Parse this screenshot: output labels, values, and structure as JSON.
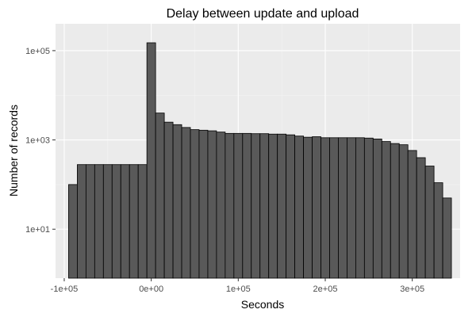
{
  "chart_data": {
    "type": "bar",
    "title": "Delay between update and upload",
    "xlabel": "Seconds",
    "ylabel": "Number of records",
    "x_scale": "linear",
    "y_scale": "log10",
    "xlim": [
      -110000,
      355000
    ],
    "ylim": [
      0.8,
      400000
    ],
    "grid": true,
    "x_ticks": [
      {
        "value": -100000,
        "label": "-1e+05"
      },
      {
        "value": 0,
        "label": "0e+00"
      },
      {
        "value": 100000,
        "label": "1e+05"
      },
      {
        "value": 200000,
        "label": "2e+05"
      },
      {
        "value": 300000,
        "label": "3e+05"
      }
    ],
    "y_ticks": [
      {
        "value": 10,
        "label": "1e+01"
      },
      {
        "value": 1000,
        "label": "1e+03"
      },
      {
        "value": 100000,
        "label": "1e+05"
      }
    ],
    "bin_width": 10000,
    "bins": [
      {
        "x0": -95000,
        "x1": -85000,
        "count": 100
      },
      {
        "x0": -85000,
        "x1": -75000,
        "count": 280
      },
      {
        "x0": -75000,
        "x1": -65000,
        "count": 280
      },
      {
        "x0": -65000,
        "x1": -55000,
        "count": 280
      },
      {
        "x0": -55000,
        "x1": -45000,
        "count": 280
      },
      {
        "x0": -45000,
        "x1": -35000,
        "count": 280
      },
      {
        "x0": -35000,
        "x1": -25000,
        "count": 280
      },
      {
        "x0": -25000,
        "x1": -15000,
        "count": 280
      },
      {
        "x0": -15000,
        "x1": -5000,
        "count": 280
      },
      {
        "x0": -5000,
        "x1": 5000,
        "count": 150000
      },
      {
        "x0": 5000,
        "x1": 15000,
        "count": 4000
      },
      {
        "x0": 15000,
        "x1": 25000,
        "count": 2500
      },
      {
        "x0": 25000,
        "x1": 35000,
        "count": 2200
      },
      {
        "x0": 35000,
        "x1": 45000,
        "count": 1900
      },
      {
        "x0": 45000,
        "x1": 55000,
        "count": 1700
      },
      {
        "x0": 55000,
        "x1": 65000,
        "count": 1650
      },
      {
        "x0": 65000,
        "x1": 75000,
        "count": 1600
      },
      {
        "x0": 75000,
        "x1": 85000,
        "count": 1500
      },
      {
        "x0": 85000,
        "x1": 95000,
        "count": 1400
      },
      {
        "x0": 95000,
        "x1": 105000,
        "count": 1400
      },
      {
        "x0": 105000,
        "x1": 115000,
        "count": 1400
      },
      {
        "x0": 115000,
        "x1": 125000,
        "count": 1380
      },
      {
        "x0": 125000,
        "x1": 135000,
        "count": 1380
      },
      {
        "x0": 135000,
        "x1": 145000,
        "count": 1350
      },
      {
        "x0": 145000,
        "x1": 155000,
        "count": 1350
      },
      {
        "x0": 155000,
        "x1": 165000,
        "count": 1300
      },
      {
        "x0": 165000,
        "x1": 175000,
        "count": 1220
      },
      {
        "x0": 175000,
        "x1": 185000,
        "count": 1150
      },
      {
        "x0": 185000,
        "x1": 195000,
        "count": 1180
      },
      {
        "x0": 195000,
        "x1": 205000,
        "count": 1120
      },
      {
        "x0": 205000,
        "x1": 215000,
        "count": 1120
      },
      {
        "x0": 215000,
        "x1": 225000,
        "count": 1120
      },
      {
        "x0": 225000,
        "x1": 235000,
        "count": 1120
      },
      {
        "x0": 235000,
        "x1": 245000,
        "count": 1120
      },
      {
        "x0": 245000,
        "x1": 255000,
        "count": 1100
      },
      {
        "x0": 255000,
        "x1": 265000,
        "count": 1050
      },
      {
        "x0": 265000,
        "x1": 275000,
        "count": 920
      },
      {
        "x0": 275000,
        "x1": 285000,
        "count": 830
      },
      {
        "x0": 285000,
        "x1": 295000,
        "count": 780
      },
      {
        "x0": 295000,
        "x1": 305000,
        "count": 580
      },
      {
        "x0": 305000,
        "x1": 315000,
        "count": 400
      },
      {
        "x0": 315000,
        "x1": 325000,
        "count": 260
      },
      {
        "x0": 325000,
        "x1": 335000,
        "count": 110
      },
      {
        "x0": 335000,
        "x1": 345000,
        "count": 50
      }
    ],
    "colors": {
      "bar_fill": "#595959",
      "bar_stroke": "#000000",
      "panel_background": "#ebebeb",
      "grid_major": "#ffffff",
      "grid_minor": "#f4f4f4",
      "tick_label": "#4d4d4d",
      "tick_mark": "#333333"
    }
  }
}
